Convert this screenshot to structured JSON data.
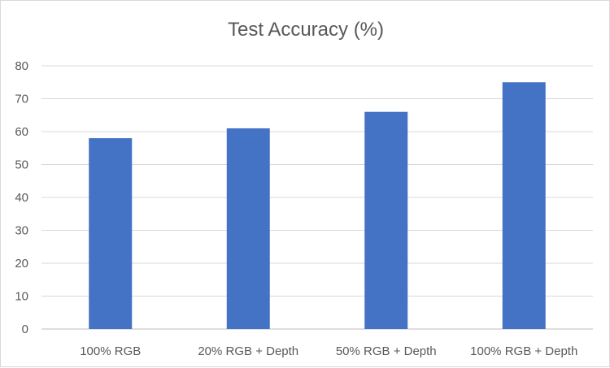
{
  "chart_data": {
    "type": "bar",
    "title": "Test Accuracy (%)",
    "xlabel": "",
    "ylabel": "",
    "categories": [
      "100% RGB",
      "20% RGB + Depth",
      "50% RGB + Depth",
      "100% RGB + Depth"
    ],
    "values": [
      58,
      61,
      66,
      75
    ],
    "ylim": [
      0,
      80
    ],
    "yticks": [
      0,
      10,
      20,
      30,
      40,
      50,
      60,
      70,
      80
    ],
    "grid": true,
    "legend": "none",
    "colors": {
      "bar": "#4472c4",
      "grid": "#d9d9d9",
      "text": "#595959"
    }
  }
}
